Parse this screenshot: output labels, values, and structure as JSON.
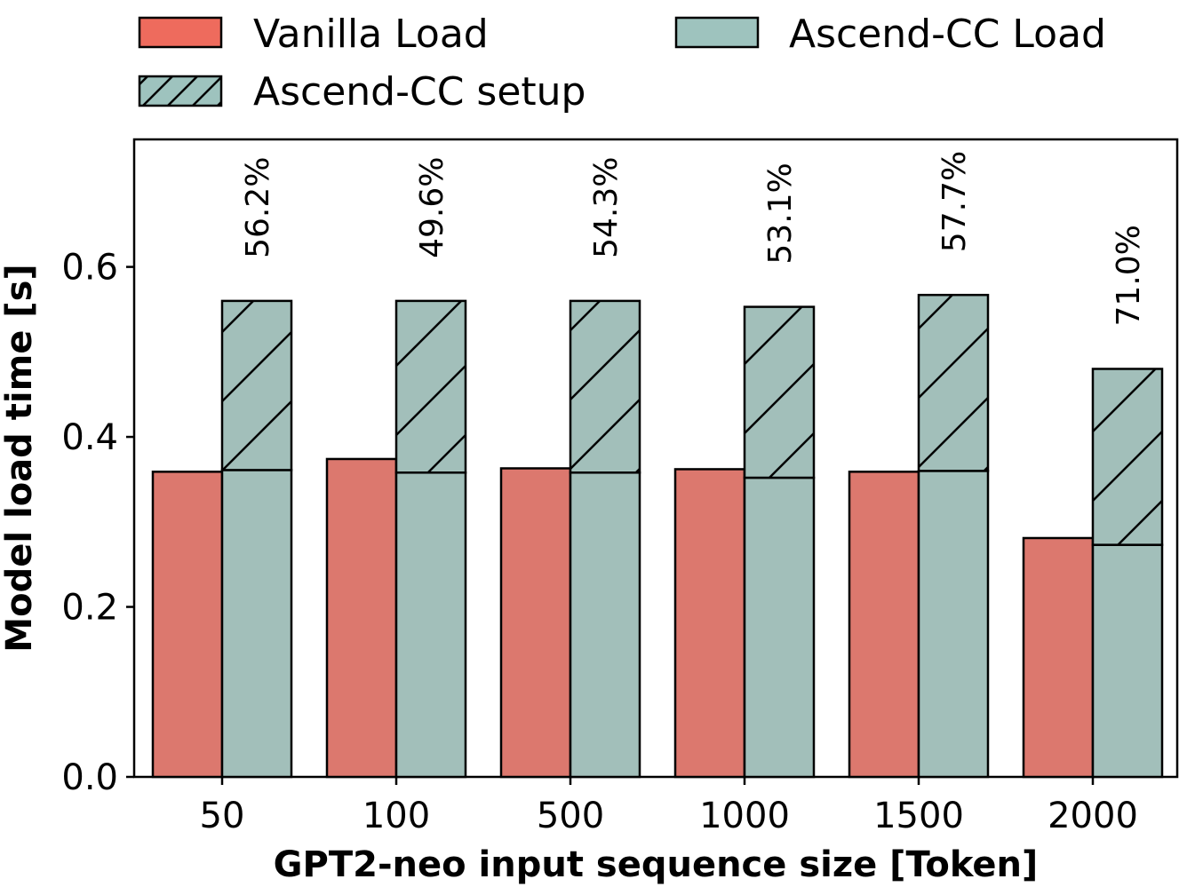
{
  "colors": {
    "vanilla": "#dc786e",
    "ascend_load": "#a2bfba",
    "legend_vanilla": "#ee6b5d",
    "legend_ascend": "#9ec3be",
    "edge": "#000000"
  },
  "chart_data": {
    "type": "bar",
    "categories": [
      "50",
      "100",
      "500",
      "1000",
      "1500",
      "2000"
    ],
    "series": [
      {
        "name": "Vanilla Load",
        "values": [
          0.359,
          0.374,
          0.363,
          0.362,
          0.359,
          0.281
        ]
      },
      {
        "name": "Ascend-CC Load",
        "values": [
          0.361,
          0.358,
          0.358,
          0.352,
          0.36,
          0.273
        ]
      },
      {
        "name": "Ascend-CC setup",
        "values": [
          0.199,
          0.202,
          0.202,
          0.201,
          0.207,
          0.207
        ],
        "stacked_on": "Ascend-CC Load",
        "pattern": "hatch"
      }
    ],
    "annotations": [
      "56.2%",
      "49.6%",
      "54.3%",
      "53.1%",
      "57.7%",
      "71.0%"
    ],
    "xlabel": "GPT2-neo input sequence size [Token]",
    "ylabel": "Model load time [s]",
    "ylim": [
      0,
      0.75
    ],
    "yticks": [
      "0.0",
      "0.2",
      "0.4",
      "0.6"
    ],
    "grid": false,
    "legend_placement": "top, outside plot"
  }
}
